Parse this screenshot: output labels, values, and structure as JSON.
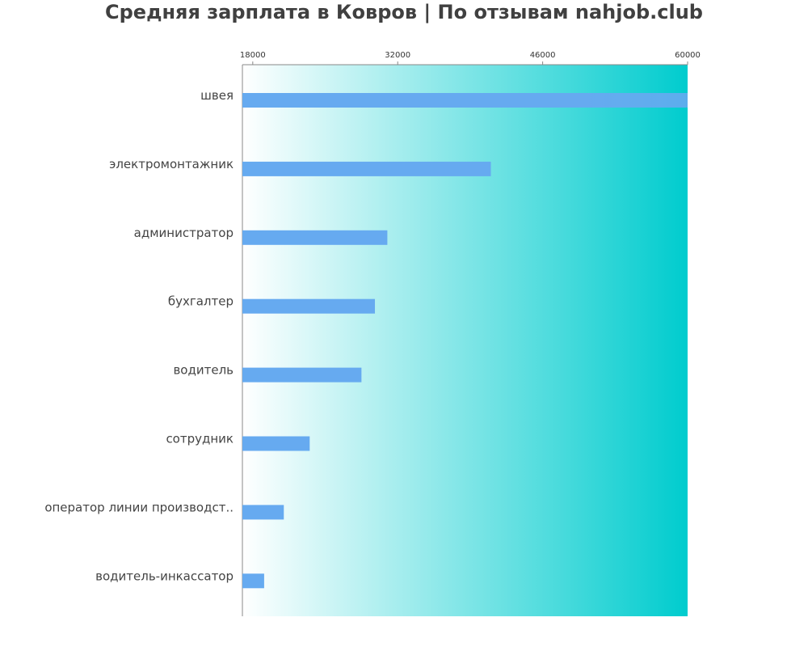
{
  "chart_data": {
    "type": "bar",
    "orientation": "horizontal",
    "title": "Средняя зарплата в Ковров | По отзывам nahjob.club",
    "categories": [
      "швея",
      "электромонтажник",
      "администратор",
      "бухгалтер",
      "водитель",
      "сотрудник",
      "оператор линии производст..",
      "водитель-инкассатор"
    ],
    "values": [
      61000,
      41000,
      31000,
      29800,
      28500,
      23500,
      21000,
      19100
    ],
    "xlim": [
      17000,
      60000
    ],
    "xticks": [
      18000,
      32000,
      46000,
      60000
    ],
    "xtick_labels": [
      "18000",
      "32000",
      "46000",
      "60000"
    ],
    "axis_position": "top",
    "bar_color": "#66aaf0",
    "background_gradient": [
      "#ffffff",
      "#00ccce"
    ]
  }
}
